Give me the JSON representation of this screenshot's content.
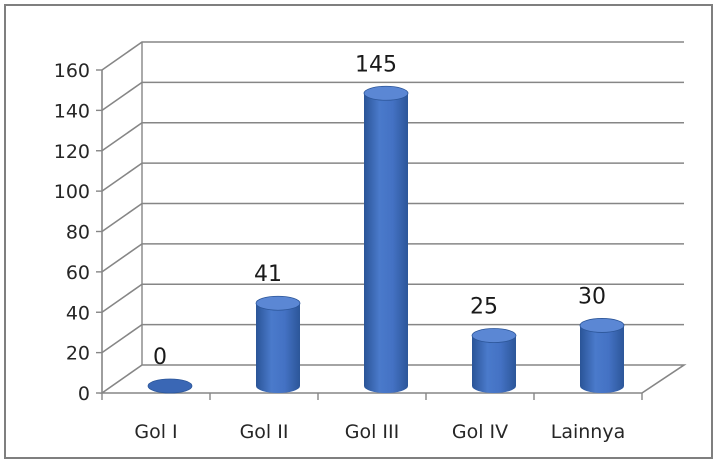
{
  "chart_data": {
    "type": "bar",
    "style": "3d-cylinder",
    "categories": [
      "Gol I",
      "Gol II",
      "Gol III",
      "Gol IV",
      "Lainnya"
    ],
    "values": [
      0,
      41,
      145,
      25,
      30
    ],
    "data_labels": [
      "0",
      "41",
      "145",
      "25",
      "30"
    ],
    "y_ticks": [
      "0",
      "20",
      "40",
      "60",
      "80",
      "100",
      "120",
      "140",
      "160"
    ],
    "ylim": [
      0,
      160
    ],
    "grid": true,
    "legend": false,
    "title": "",
    "xlabel": "",
    "ylabel": "",
    "colors": {
      "bar": "#4472c4",
      "bar_dark": "#2c5699",
      "bar_light": "#7fa6e0",
      "grid": "#868686",
      "frame": "#7f7f7f"
    }
  }
}
